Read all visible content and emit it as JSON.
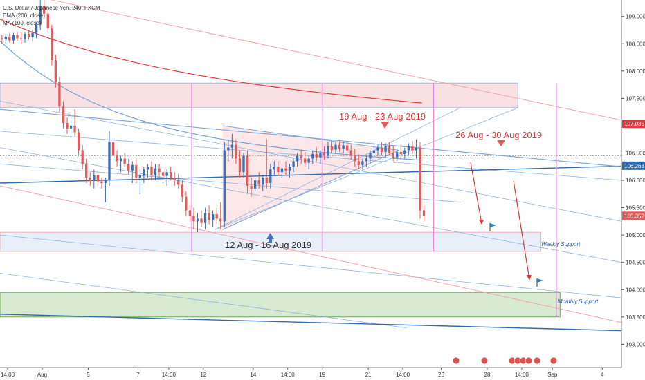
{
  "legend": {
    "symbol": "U.S. Dollar / Japanese Yen, 240, FXCM",
    "ema": "EMA (200, close)",
    "ma": "MA (100, close)"
  },
  "annotations": {
    "period1": "12 Aug - 16 Aug 2019",
    "period2": "19 Aug - 23 Aug 2019",
    "period3": "26 Aug - 30 Aug 2019",
    "weekly_support": "Weekly Support",
    "monthly_support": "Monthly Support"
  },
  "price_badges": {
    "ema": "107.035",
    "ma": "106.268",
    "last": "105.352"
  },
  "colors": {
    "bull": "#3a6fb5",
    "bear": "#e25a5a",
    "ema": "#e03a3a",
    "ma": "#6fa3d6",
    "trend": "#2e6db0",
    "pink_line": "#ee82ee",
    "resistance_zone": "#f9e1e3",
    "weekly_zone": "#e9eff8",
    "monthly_zone": "#d9ead3"
  },
  "chart_data": {
    "type": "candlestick",
    "title": "U.S. Dollar / Japanese Yen, 240, FXCM",
    "ylim": [
      102.6,
      109.3
    ],
    "y_ticks": [
      "103.000",
      "103.500",
      "104.000",
      "104.500",
      "105.000",
      "105.500",
      "106.000",
      "106.500",
      "107.500",
      "108.000",
      "108.500",
      "109.000"
    ],
    "x_ticks": [
      "14:00",
      "Aug",
      "5",
      "7",
      "14:00",
      "12",
      "14",
      "14:00",
      "19",
      "21",
      "14:00",
      "26",
      "28",
      "14:00",
      "Sep",
      "4"
    ],
    "x_range": [
      0,
      162
    ],
    "x_tick_positions": [
      2,
      11,
      23,
      36,
      44,
      53,
      66,
      75,
      84,
      96,
      105,
      115,
      127,
      136,
      144,
      157
    ],
    "candles": [
      {
        "i": 0,
        "o": 108.6,
        "h": 108.66,
        "l": 108.5,
        "c": 108.58
      },
      {
        "i": 1,
        "o": 108.58,
        "h": 108.68,
        "l": 108.5,
        "c": 108.63
      },
      {
        "i": 2,
        "o": 108.63,
        "h": 108.7,
        "l": 108.52,
        "c": 108.56
      },
      {
        "i": 3,
        "o": 108.56,
        "h": 108.7,
        "l": 108.5,
        "c": 108.66
      },
      {
        "i": 4,
        "o": 108.66,
        "h": 108.72,
        "l": 108.55,
        "c": 108.6
      },
      {
        "i": 5,
        "o": 108.6,
        "h": 108.7,
        "l": 108.5,
        "c": 108.58
      },
      {
        "i": 6,
        "o": 108.58,
        "h": 108.72,
        "l": 108.52,
        "c": 108.68
      },
      {
        "i": 7,
        "o": 108.68,
        "h": 108.74,
        "l": 108.58,
        "c": 108.62
      },
      {
        "i": 8,
        "o": 108.62,
        "h": 108.75,
        "l": 108.55,
        "c": 108.7
      },
      {
        "i": 9,
        "o": 108.7,
        "h": 108.9,
        "l": 108.6,
        "c": 108.85
      },
      {
        "i": 10,
        "o": 108.85,
        "h": 109.3,
        "l": 108.75,
        "c": 109.2
      },
      {
        "i": 11,
        "o": 109.2,
        "h": 109.3,
        "l": 108.95,
        "c": 109.05
      },
      {
        "i": 12,
        "o": 109.05,
        "h": 109.2,
        "l": 108.7,
        "c": 108.78
      },
      {
        "i": 13,
        "o": 108.78,
        "h": 108.85,
        "l": 108.1,
        "c": 108.2
      },
      {
        "i": 14,
        "o": 108.2,
        "h": 108.3,
        "l": 107.7,
        "c": 107.8
      },
      {
        "i": 15,
        "o": 107.8,
        "h": 107.9,
        "l": 107.25,
        "c": 107.35
      },
      {
        "i": 16,
        "o": 107.35,
        "h": 107.45,
        "l": 106.95,
        "c": 107.05
      },
      {
        "i": 17,
        "o": 107.05,
        "h": 107.15,
        "l": 106.85,
        "c": 106.95
      },
      {
        "i": 18,
        "o": 106.95,
        "h": 107.1,
        "l": 106.8,
        "c": 107.0
      },
      {
        "i": 19,
        "o": 107.0,
        "h": 107.3,
        "l": 106.8,
        "c": 106.88
      },
      {
        "i": 20,
        "o": 106.88,
        "h": 106.95,
        "l": 106.45,
        "c": 106.55
      },
      {
        "i": 21,
        "o": 106.55,
        "h": 106.65,
        "l": 106.2,
        "c": 106.3
      },
      {
        "i": 22,
        "o": 106.3,
        "h": 106.4,
        "l": 105.95,
        "c": 106.05
      },
      {
        "i": 23,
        "o": 106.05,
        "h": 106.15,
        "l": 105.9,
        "c": 106.0
      },
      {
        "i": 24,
        "o": 106.0,
        "h": 106.2,
        "l": 105.85,
        "c": 106.1
      },
      {
        "i": 25,
        "o": 106.1,
        "h": 106.18,
        "l": 105.9,
        "c": 105.98
      },
      {
        "i": 26,
        "o": 105.98,
        "h": 106.05,
        "l": 105.85,
        "c": 105.95
      },
      {
        "i": 27,
        "o": 105.95,
        "h": 106.05,
        "l": 105.6,
        "c": 106.0
      },
      {
        "i": 28,
        "o": 106.0,
        "h": 106.9,
        "l": 105.9,
        "c": 106.7
      },
      {
        "i": 29,
        "o": 106.7,
        "h": 106.75,
        "l": 106.4,
        "c": 106.45
      },
      {
        "i": 30,
        "o": 106.45,
        "h": 106.55,
        "l": 106.25,
        "c": 106.35
      },
      {
        "i": 31,
        "o": 106.35,
        "h": 106.45,
        "l": 106.15,
        "c": 106.4
      },
      {
        "i": 32,
        "o": 106.4,
        "h": 106.5,
        "l": 106.25,
        "c": 106.3
      },
      {
        "i": 33,
        "o": 106.3,
        "h": 106.4,
        "l": 106.1,
        "c": 106.18
      },
      {
        "i": 34,
        "o": 106.18,
        "h": 106.35,
        "l": 105.95,
        "c": 106.28
      },
      {
        "i": 35,
        "o": 106.28,
        "h": 106.4,
        "l": 105.95,
        "c": 106.05
      },
      {
        "i": 36,
        "o": 106.05,
        "h": 106.2,
        "l": 105.75,
        "c": 106.1
      },
      {
        "i": 37,
        "o": 106.1,
        "h": 106.25,
        "l": 105.95,
        "c": 106.2
      },
      {
        "i": 38,
        "o": 106.2,
        "h": 106.3,
        "l": 106.05,
        "c": 106.25
      },
      {
        "i": 39,
        "o": 106.25,
        "h": 106.35,
        "l": 106.0,
        "c": 106.1
      },
      {
        "i": 40,
        "o": 106.1,
        "h": 106.3,
        "l": 106.0,
        "c": 106.22
      },
      {
        "i": 41,
        "o": 106.22,
        "h": 106.3,
        "l": 106.05,
        "c": 106.15
      },
      {
        "i": 42,
        "o": 106.15,
        "h": 106.25,
        "l": 105.95,
        "c": 106.08
      },
      {
        "i": 43,
        "o": 106.08,
        "h": 106.2,
        "l": 105.9,
        "c": 106.15
      },
      {
        "i": 44,
        "o": 106.15,
        "h": 106.25,
        "l": 106.0,
        "c": 106.05
      },
      {
        "i": 45,
        "o": 106.05,
        "h": 106.15,
        "l": 105.9,
        "c": 106.0
      },
      {
        "i": 46,
        "o": 106.0,
        "h": 106.12,
        "l": 105.85,
        "c": 105.92
      },
      {
        "i": 47,
        "o": 105.92,
        "h": 106.0,
        "l": 105.6,
        "c": 105.7
      },
      {
        "i": 48,
        "o": 105.7,
        "h": 105.8,
        "l": 105.35,
        "c": 105.45
      },
      {
        "i": 49,
        "o": 105.45,
        "h": 105.55,
        "l": 105.25,
        "c": 105.35
      },
      {
        "i": 50,
        "o": 105.35,
        "h": 105.5,
        "l": 105.1,
        "c": 105.25
      },
      {
        "i": 51,
        "o": 105.25,
        "h": 105.4,
        "l": 105.05,
        "c": 105.3
      },
      {
        "i": 52,
        "o": 105.3,
        "h": 105.45,
        "l": 105.15,
        "c": 105.22
      },
      {
        "i": 53,
        "o": 105.22,
        "h": 105.5,
        "l": 105.1,
        "c": 105.4
      },
      {
        "i": 54,
        "o": 105.4,
        "h": 105.55,
        "l": 105.2,
        "c": 105.28
      },
      {
        "i": 55,
        "o": 105.28,
        "h": 105.45,
        "l": 105.15,
        "c": 105.38
      },
      {
        "i": 56,
        "o": 105.38,
        "h": 105.5,
        "l": 105.2,
        "c": 105.3
      },
      {
        "i": 57,
        "o": 105.3,
        "h": 105.6,
        "l": 105.1,
        "c": 105.25
      },
      {
        "i": 58,
        "o": 105.25,
        "h": 106.7,
        "l": 105.15,
        "c": 106.55
      },
      {
        "i": 59,
        "o": 106.55,
        "h": 106.75,
        "l": 106.35,
        "c": 106.6
      },
      {
        "i": 60,
        "o": 106.6,
        "h": 106.85,
        "l": 106.4,
        "c": 106.65
      },
      {
        "i": 61,
        "o": 106.65,
        "h": 106.75,
        "l": 106.3,
        "c": 106.4
      },
      {
        "i": 62,
        "o": 106.4,
        "h": 106.55,
        "l": 106.05,
        "c": 106.15
      },
      {
        "i": 63,
        "o": 106.15,
        "h": 106.5,
        "l": 106.05,
        "c": 106.45
      },
      {
        "i": 64,
        "o": 106.45,
        "h": 106.55,
        "l": 105.75,
        "c": 105.9
      },
      {
        "i": 65,
        "o": 105.9,
        "h": 106.05,
        "l": 105.7,
        "c": 105.85
      },
      {
        "i": 66,
        "o": 105.85,
        "h": 106.05,
        "l": 105.8,
        "c": 106.0
      },
      {
        "i": 67,
        "o": 106.0,
        "h": 106.15,
        "l": 105.85,
        "c": 105.92
      },
      {
        "i": 68,
        "o": 105.92,
        "h": 106.1,
        "l": 105.8,
        "c": 106.05
      },
      {
        "i": 69,
        "o": 106.05,
        "h": 106.75,
        "l": 105.85,
        "c": 105.95
      },
      {
        "i": 70,
        "o": 105.95,
        "h": 106.3,
        "l": 105.85,
        "c": 106.2
      },
      {
        "i": 71,
        "o": 106.2,
        "h": 106.35,
        "l": 106.1,
        "c": 106.25
      },
      {
        "i": 72,
        "o": 106.25,
        "h": 106.35,
        "l": 106.1,
        "c": 106.15
      },
      {
        "i": 73,
        "o": 106.15,
        "h": 106.3,
        "l": 106.05,
        "c": 106.22
      },
      {
        "i": 74,
        "o": 106.22,
        "h": 106.35,
        "l": 106.1,
        "c": 106.18
      },
      {
        "i": 75,
        "o": 106.18,
        "h": 106.3,
        "l": 106.05,
        "c": 106.25
      },
      {
        "i": 76,
        "o": 106.25,
        "h": 106.4,
        "l": 106.15,
        "c": 106.35
      },
      {
        "i": 77,
        "o": 106.35,
        "h": 106.5,
        "l": 106.25,
        "c": 106.45
      },
      {
        "i": 78,
        "o": 106.45,
        "h": 106.55,
        "l": 106.3,
        "c": 106.4
      },
      {
        "i": 79,
        "o": 106.4,
        "h": 106.52,
        "l": 106.25,
        "c": 106.32
      },
      {
        "i": 80,
        "o": 106.32,
        "h": 106.45,
        "l": 106.2,
        "c": 106.4
      },
      {
        "i": 81,
        "o": 106.4,
        "h": 106.55,
        "l": 106.3,
        "c": 106.48
      },
      {
        "i": 82,
        "o": 106.48,
        "h": 106.6,
        "l": 106.35,
        "c": 106.42
      },
      {
        "i": 83,
        "o": 106.42,
        "h": 106.55,
        "l": 106.3,
        "c": 106.5
      },
      {
        "i": 84,
        "o": 106.5,
        "h": 106.62,
        "l": 106.38,
        "c": 106.45
      },
      {
        "i": 85,
        "o": 106.45,
        "h": 106.7,
        "l": 106.4,
        "c": 106.62
      },
      {
        "i": 86,
        "o": 106.62,
        "h": 106.72,
        "l": 106.5,
        "c": 106.56
      },
      {
        "i": 87,
        "o": 106.56,
        "h": 106.7,
        "l": 106.48,
        "c": 106.65
      },
      {
        "i": 88,
        "o": 106.65,
        "h": 106.72,
        "l": 106.52,
        "c": 106.58
      },
      {
        "i": 89,
        "o": 106.58,
        "h": 106.7,
        "l": 106.5,
        "c": 106.64
      },
      {
        "i": 90,
        "o": 106.64,
        "h": 106.72,
        "l": 106.5,
        "c": 106.55
      },
      {
        "i": 91,
        "o": 106.55,
        "h": 106.65,
        "l": 106.38,
        "c": 106.45
      },
      {
        "i": 92,
        "o": 106.45,
        "h": 106.58,
        "l": 106.25,
        "c": 106.35
      },
      {
        "i": 93,
        "o": 106.35,
        "h": 106.48,
        "l": 106.2,
        "c": 106.28
      },
      {
        "i": 94,
        "o": 106.28,
        "h": 106.4,
        "l": 106.2,
        "c": 106.35
      },
      {
        "i": 95,
        "o": 106.35,
        "h": 106.45,
        "l": 106.25,
        "c": 106.4
      },
      {
        "i": 96,
        "o": 106.4,
        "h": 106.55,
        "l": 106.3,
        "c": 106.5
      },
      {
        "i": 97,
        "o": 106.5,
        "h": 106.62,
        "l": 106.4,
        "c": 106.55
      },
      {
        "i": 98,
        "o": 106.55,
        "h": 106.65,
        "l": 106.45,
        "c": 106.6
      },
      {
        "i": 99,
        "o": 106.6,
        "h": 106.7,
        "l": 106.45,
        "c": 106.52
      },
      {
        "i": 100,
        "o": 106.52,
        "h": 106.68,
        "l": 106.42,
        "c": 106.62
      },
      {
        "i": 101,
        "o": 106.62,
        "h": 106.7,
        "l": 106.45,
        "c": 106.5
      },
      {
        "i": 102,
        "o": 106.5,
        "h": 106.62,
        "l": 106.35,
        "c": 106.42
      },
      {
        "i": 103,
        "o": 106.42,
        "h": 106.58,
        "l": 106.35,
        "c": 106.52
      },
      {
        "i": 104,
        "o": 106.52,
        "h": 106.65,
        "l": 106.4,
        "c": 106.48
      },
      {
        "i": 105,
        "o": 106.48,
        "h": 106.6,
        "l": 106.4,
        "c": 106.55
      },
      {
        "i": 106,
        "o": 106.55,
        "h": 106.68,
        "l": 106.45,
        "c": 106.62
      },
      {
        "i": 107,
        "o": 106.62,
        "h": 106.72,
        "l": 106.48,
        "c": 106.55
      },
      {
        "i": 108,
        "o": 106.55,
        "h": 106.75,
        "l": 106.4,
        "c": 106.6
      },
      {
        "i": 109,
        "o": 106.6,
        "h": 106.7,
        "l": 105.3,
        "c": 105.45
      },
      {
        "i": 110,
        "o": 105.45,
        "h": 105.55,
        "l": 105.25,
        "c": 105.35
      }
    ]
  }
}
